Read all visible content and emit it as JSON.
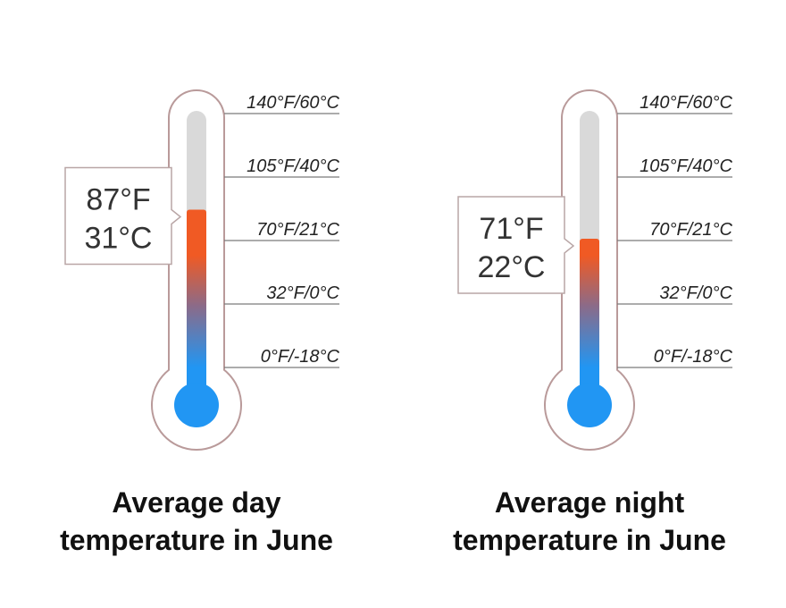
{
  "chart_data": [
    {
      "type": "thermometer",
      "title_lines": [
        "Average day",
        "temperature in June"
      ],
      "value_f": 87,
      "value_c": 31,
      "readout_f": "87°F",
      "readout_c": "31°C",
      "scale": [
        {
          "f": 140,
          "label": "140°F/60°C"
        },
        {
          "f": 105,
          "label": "105°F/40°C"
        },
        {
          "f": 70,
          "label": "70°F/21°C"
        },
        {
          "f": 32,
          "label": "32°F/0°C"
        },
        {
          "f": 0,
          "label": "0°F/-18°C"
        }
      ]
    },
    {
      "type": "thermometer",
      "title_lines": [
        "Average night",
        "temperature in June"
      ],
      "value_f": 71,
      "value_c": 22,
      "readout_f": "71°F",
      "readout_c": "22°C",
      "scale": [
        {
          "f": 140,
          "label": "140°F/60°C"
        },
        {
          "f": 105,
          "label": "105°F/40°C"
        },
        {
          "f": 70,
          "label": "70°F/21°C"
        },
        {
          "f": 32,
          "label": "32°F/0°C"
        },
        {
          "f": 0,
          "label": "0°F/-18°C"
        }
      ]
    }
  ],
  "colors": {
    "hot": "#f05a24",
    "mid": "#8a6b8a",
    "cold": "#2196f3",
    "empty_tube": "#d9d9d9",
    "outline": "#b99a9a",
    "tick_line": "#7a7a7a",
    "box_border": "#b9a6a6"
  }
}
